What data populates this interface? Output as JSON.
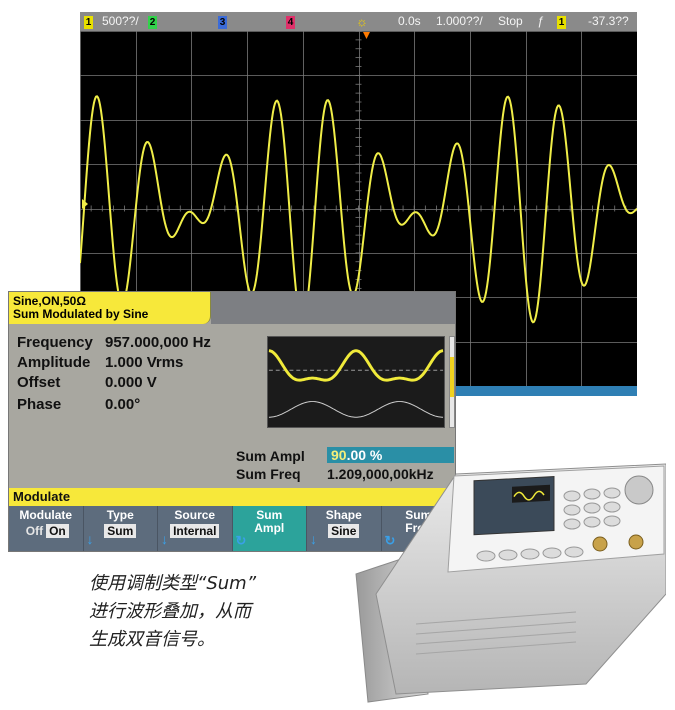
{
  "scope": {
    "status": {
      "ch1_num": "1",
      "ch1_scale": "500??/",
      "ch2_num": "2",
      "ch3_num": "3",
      "ch4_num": "4",
      "time_ref": "0.0s",
      "time_scale": "1.000??/",
      "run_state": "Stop",
      "trig_ch": "1",
      "trig_level": "-37.3??"
    },
    "ch1_color": "#e8e000",
    "ch2_color": "#31d34a",
    "ch3_color": "#3b6bd8",
    "ch4_color": "#e0306a",
    "trace_color": "#f0ee48",
    "grid_color": "#7a7a7a",
    "marker_color": "#ff7a00"
  },
  "generator": {
    "tab_line1": "Sine,ON,50Ω",
    "tab_line2": "Sum Modulated by Sine",
    "params": [
      {
        "label": "Frequency",
        "value": "957.000,000 Hz"
      },
      {
        "label": "Amplitude",
        "value": "1.000 Vrms"
      },
      {
        "label": "Offset",
        "value": "0.000 V"
      },
      {
        "label": "Phase",
        "value": "0.00°"
      }
    ],
    "sum_ampl_label": "Sum Ampl",
    "sum_ampl_cursor": "90",
    "sum_ampl_rest": ".00 %",
    "sum_freq_label": "Sum Freq",
    "sum_freq_value": "1.209,000,00kHz",
    "modulate_bar": "Modulate",
    "softkeys": {
      "modulate": {
        "title": "Modulate",
        "off": "Off",
        "on": "On"
      },
      "type": {
        "title": "Type",
        "value": "Sum"
      },
      "source": {
        "title": "Source",
        "value": "Internal"
      },
      "sum_ampl": {
        "title1": "Sum",
        "title2": "Ampl"
      },
      "shape": {
        "title": "Shape",
        "value": "Sine"
      },
      "sum_freq": {
        "title1": "Sum",
        "title2": "Freq"
      }
    },
    "softkey_icons": {
      "down_arrow": "down-arrow-icon",
      "knob": "knob-icon"
    },
    "highlight_color": "#2ca39b",
    "yellow": "#f7e83a"
  },
  "caption": {
    "line1": "使用调制类型“Sum”",
    "line2": "进行波形叠加，从而",
    "line3": "生成双音信号。"
  }
}
